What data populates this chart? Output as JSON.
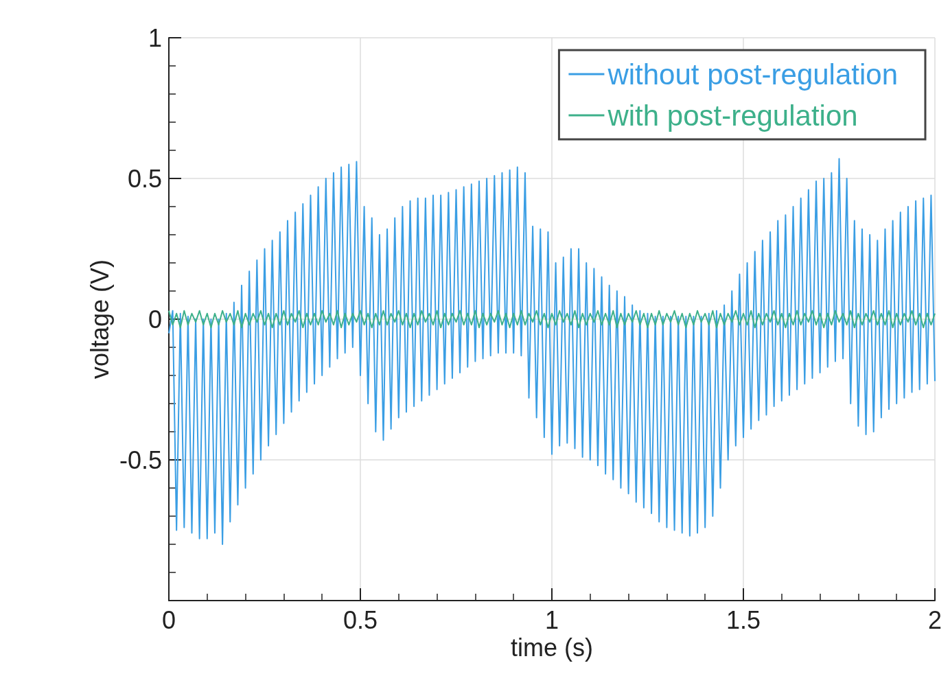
{
  "chart_data": {
    "type": "line",
    "xlabel": "time (s)",
    "ylabel": "voltage (V)",
    "x": [
      0,
      0.01,
      0.02,
      0.03,
      0.04,
      0.05,
      0.06,
      0.07,
      0.08,
      0.09,
      0.1,
      0.11,
      0.12,
      0.13,
      0.14,
      0.15,
      0.16,
      0.17,
      0.18,
      0.19,
      0.2,
      0.21,
      0.22,
      0.23,
      0.24,
      0.25,
      0.26,
      0.27,
      0.28,
      0.29,
      0.3,
      0.31,
      0.32,
      0.33,
      0.34,
      0.35,
      0.36,
      0.37,
      0.38,
      0.39,
      0.4,
      0.41,
      0.42,
      0.43,
      0.44,
      0.45,
      0.46,
      0.47,
      0.48,
      0.49,
      0.5,
      0.51,
      0.52,
      0.53,
      0.54,
      0.55,
      0.56,
      0.57,
      0.58,
      0.59,
      0.6,
      0.61,
      0.62,
      0.63,
      0.64,
      0.65,
      0.66,
      0.67,
      0.68,
      0.69,
      0.7,
      0.71,
      0.72,
      0.73,
      0.74,
      0.75,
      0.76,
      0.77,
      0.78,
      0.79,
      0.8,
      0.81,
      0.82,
      0.83,
      0.84,
      0.85,
      0.86,
      0.87,
      0.88,
      0.89,
      0.9,
      0.91,
      0.92,
      0.93,
      0.94,
      0.95,
      0.96,
      0.97,
      0.98,
      0.99,
      1,
      1.01,
      1.02,
      1.03,
      1.04,
      1.05,
      1.06,
      1.07,
      1.08,
      1.09,
      1.1,
      1.11,
      1.12,
      1.13,
      1.14,
      1.15,
      1.16,
      1.17,
      1.18,
      1.19,
      1.2,
      1.21,
      1.22,
      1.23,
      1.24,
      1.25,
      1.26,
      1.27,
      1.28,
      1.29,
      1.3,
      1.31,
      1.32,
      1.33,
      1.34,
      1.35,
      1.36,
      1.37,
      1.38,
      1.39,
      1.4,
      1.41,
      1.42,
      1.43,
      1.44,
      1.45,
      1.46,
      1.47,
      1.48,
      1.49,
      1.5,
      1.51,
      1.52,
      1.53,
      1.54,
      1.55,
      1.56,
      1.57,
      1.58,
      1.59,
      1.6,
      1.61,
      1.62,
      1.63,
      1.64,
      1.65,
      1.66,
      1.67,
      1.68,
      1.69,
      1.7,
      1.71,
      1.72,
      1.73,
      1.74,
      1.75,
      1.76,
      1.77,
      1.78,
      1.79,
      1.8,
      1.81,
      1.82,
      1.83,
      1.84,
      1.85,
      1.86,
      1.87,
      1.88,
      1.89,
      1.9,
      1.91,
      1.92,
      1.93,
      1.94,
      1.95,
      1.96,
      1.97,
      1.98,
      1.99,
      2
    ],
    "series": [
      {
        "name": "without post-regulation",
        "color": "#3a9ee4",
        "values": [
          -0.05,
          0.03,
          -0.75,
          0.02,
          -0.74,
          0.01,
          -0.76,
          0,
          -0.78,
          0,
          -0.78,
          0,
          -0.76,
          0,
          -0.8,
          0.02,
          -0.72,
          0.06,
          -0.66,
          0.12,
          -0.6,
          0.17,
          -0.55,
          0.21,
          -0.5,
          0.25,
          -0.45,
          0.28,
          -0.41,
          0.31,
          -0.37,
          0.35,
          -0.33,
          0.38,
          -0.29,
          0.41,
          -0.26,
          0.44,
          -0.23,
          0.47,
          -0.2,
          0.5,
          -0.17,
          0.52,
          -0.14,
          0.54,
          -0.12,
          0.55,
          -0.1,
          0.56,
          -0.2,
          0.4,
          -0.3,
          0.36,
          -0.4,
          0.3,
          -0.43,
          0.32,
          -0.39,
          0.36,
          -0.35,
          0.4,
          -0.33,
          0.42,
          -0.31,
          0.43,
          -0.29,
          0.43,
          -0.27,
          0.44,
          -0.25,
          0.44,
          -0.23,
          0.45,
          -0.21,
          0.46,
          -0.19,
          0.47,
          -0.17,
          0.48,
          -0.15,
          0.49,
          -0.14,
          0.5,
          -0.13,
          0.51,
          -0.12,
          0.52,
          -0.12,
          0.53,
          -0.12,
          0.54,
          -0.13,
          0.52,
          -0.28,
          0.33,
          -0.35,
          0.32,
          -0.42,
          0.31,
          -0.48,
          0.2,
          -0.45,
          0.22,
          -0.44,
          0.25,
          -0.46,
          0.25,
          -0.49,
          0.2,
          -0.5,
          0.18,
          -0.52,
          0.15,
          -0.55,
          0.12,
          -0.57,
          0.1,
          -0.6,
          0.08,
          -0.62,
          0.05,
          -0.65,
          0.03,
          -0.67,
          0.02,
          -0.69,
          0.01,
          -0.72,
          0.01,
          -0.74,
          0.01,
          -0.75,
          0.01,
          -0.76,
          0.01,
          -0.77,
          0.01,
          -0.76,
          0.01,
          -0.74,
          0.02,
          -0.7,
          0.03,
          -0.6,
          0.05,
          -0.5,
          0.1,
          -0.45,
          0.16,
          -0.42,
          0.2,
          -0.39,
          0.24,
          -0.36,
          0.28,
          -0.34,
          0.31,
          -0.31,
          0.35,
          -0.29,
          0.37,
          -0.27,
          0.4,
          -0.25,
          0.43,
          -0.23,
          0.46,
          -0.21,
          0.49,
          -0.19,
          0.5,
          -0.17,
          0.52,
          -0.15,
          0.57,
          -0.14,
          0.5,
          -0.3,
          0.35,
          -0.38,
          0.32,
          -0.41,
          0.3,
          -0.4,
          0.28,
          -0.35,
          0.32,
          -0.32,
          0.35,
          -0.3,
          0.38,
          -0.28,
          0.4,
          -0.26,
          0.42,
          -0.25,
          0.43,
          -0.23,
          0.44,
          -0.22
        ]
      },
      {
        "name": "with post-regulation",
        "color": "#3db08a",
        "values": [
          0.03,
          -0.02,
          0.02,
          -0.03,
          0.03,
          -0.02,
          0.02,
          -0.01,
          0.03,
          -0.02,
          0.02,
          -0.03,
          0.02,
          -0.02,
          0.03,
          -0.01,
          0.02,
          -0.02,
          0.03,
          -0.03,
          0.02,
          -0.02,
          0.02,
          -0.01,
          0.03,
          -0.02,
          0.02,
          -0.03,
          0.02,
          -0.02,
          0.03,
          -0.02,
          0.02,
          -0.01,
          0.03,
          -0.03,
          0.02,
          -0.02,
          0.02,
          -0.02,
          0.03,
          -0.01,
          0.02,
          -0.02,
          0.03,
          -0.03,
          0.02,
          -0.02,
          0.02,
          -0.01,
          0.03,
          -0.02,
          0.02,
          -0.03,
          0.02,
          -0.02,
          0.03,
          -0.02,
          0.02,
          -0.01,
          0.03,
          -0.02,
          0.02,
          -0.03,
          0.02,
          -0.02,
          0.03,
          -0.01,
          0.02,
          -0.02,
          0.03,
          -0.03,
          0.02,
          -0.02,
          0.02,
          -0.01,
          0.03,
          -0.02,
          0.02,
          -0.02,
          0.03,
          -0.03,
          0.02,
          -0.02,
          0.02,
          -0.01,
          0.03,
          -0.02,
          0.02,
          -0.03,
          0.02,
          -0.02,
          0.03,
          -0.02,
          0.02,
          -0.01,
          0.03,
          -0.02,
          0.02,
          -0.03,
          0.02,
          -0.02,
          0.03,
          -0.01,
          0.02,
          -0.02,
          0.03,
          -0.03,
          0.02,
          -0.02,
          0.02,
          -0.01,
          0.03,
          -0.02,
          0.02,
          -0.02,
          0.03,
          -0.03,
          0.02,
          -0.02,
          0.02,
          -0.01,
          0.03,
          -0.02,
          0.02,
          -0.03,
          0.02,
          -0.02,
          0.03,
          -0.02,
          0.02,
          -0.01,
          0.03,
          -0.02,
          0.02,
          -0.03,
          0.02,
          -0.02,
          0.03,
          -0.01,
          0.02,
          -0.02,
          0.03,
          -0.03,
          0.02,
          -0.02,
          0.02,
          -0.01,
          0.03,
          -0.02,
          0.02,
          -0.02,
          0.03,
          -0.03,
          0.02,
          -0.02,
          0.02,
          -0.01,
          0.03,
          -0.02,
          0.02,
          -0.03,
          0.02,
          -0.02,
          0.03,
          -0.02,
          0.02,
          -0.01,
          0.03,
          -0.02,
          0.02,
          -0.03,
          0.02,
          -0.02,
          0.03,
          -0.01,
          0.02,
          -0.02,
          0.03,
          -0.03,
          0.02,
          -0.02,
          0.02,
          -0.01,
          0.03,
          -0.02,
          0.02,
          -0.02,
          0.03,
          -0.03,
          0.02,
          -0.02,
          0.02,
          -0.01,
          0.03,
          -0.02,
          0.02,
          -0.03,
          0.02,
          -0.02,
          0.02
        ]
      }
    ],
    "xlim": [
      0,
      2
    ],
    "xticks": [
      0,
      0.5,
      1,
      1.5,
      2
    ],
    "ylim": [
      -1,
      1
    ],
    "yticks": [
      {
        "value": -1,
        "label": null
      },
      -0.5,
      0,
      0.5,
      1
    ],
    "grid": true,
    "legend": "top right"
  }
}
